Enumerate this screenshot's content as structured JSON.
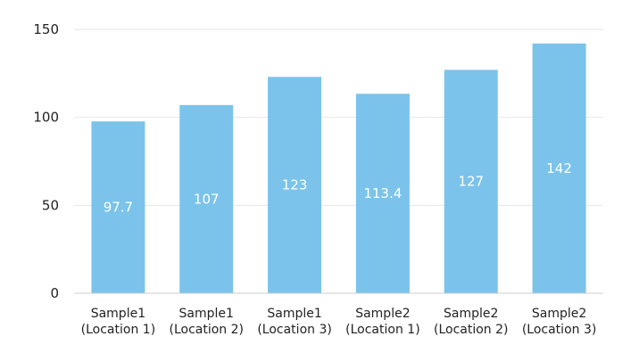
{
  "chart_data": {
    "type": "bar",
    "categories": [
      [
        "Sample1",
        "(Location 1)"
      ],
      [
        "Sample1",
        "(Location 2)"
      ],
      [
        "Sample1",
        "(Location 3)"
      ],
      [
        "Sample2",
        "(Location 1)"
      ],
      [
        "Sample2",
        "(Location 2)"
      ],
      [
        "Sample2",
        "(Location 3)"
      ]
    ],
    "values": [
      97.7,
      107,
      123,
      113.4,
      127,
      142
    ],
    "data_labels": [
      "97.7",
      "107",
      "123",
      "113.4",
      "127",
      "142"
    ],
    "y_ticks": [
      0,
      50,
      100,
      150
    ],
    "ylim": [
      0,
      150
    ],
    "title": "",
    "xlabel": "",
    "ylabel": "",
    "grid": true,
    "legend": "none",
    "colors": {
      "bar": "#7bc3ea",
      "grid": "#e6e6e6",
      "axis": "#cfcfcf",
      "label": "#ffffff",
      "text": "#222222"
    }
  }
}
